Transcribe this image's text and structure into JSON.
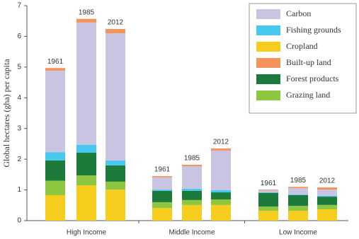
{
  "chart_data": {
    "type": "stacked_bar",
    "y_label": "Global hectares (gha) per capita",
    "groups": [
      "High Income",
      "Middle Income",
      "Low Income"
    ],
    "categories": [
      "1961",
      "1985",
      "2012",
      "1961",
      "1985",
      "2012",
      "1961",
      "1985",
      "2012"
    ],
    "series": [
      {
        "name": "Carbon",
        "color": "#c9c4e2",
        "values": [
          2.65,
          3.98,
          4.14,
          0.4,
          0.73,
          1.29,
          0.07,
          0.21,
          0.2
        ]
      },
      {
        "name": "Fishing grounds",
        "color": "#48c8ee",
        "values": [
          0.27,
          0.26,
          0.16,
          0.04,
          0.07,
          0.07,
          0.02,
          0.02,
          0.03
        ]
      },
      {
        "name": "Cropland",
        "color": "#f6cd1d",
        "values": [
          0.83,
          1.15,
          1.01,
          0.41,
          0.51,
          0.51,
          0.32,
          0.32,
          0.37
        ]
      },
      {
        "name": "Built-up land",
        "color": "#f4935c",
        "values": [
          0.09,
          0.12,
          0.14,
          0.04,
          0.05,
          0.07,
          0.02,
          0.04,
          0.07
        ]
      },
      {
        "name": "Forest products",
        "color": "#1c7b3b",
        "values": [
          0.66,
          0.74,
          0.53,
          0.37,
          0.3,
          0.23,
          0.44,
          0.35,
          0.27
        ]
      },
      {
        "name": "Grazing land",
        "color": "#8dc63f",
        "values": [
          0.47,
          0.32,
          0.26,
          0.19,
          0.16,
          0.18,
          0.14,
          0.16,
          0.14
        ]
      }
    ],
    "ylim": [
      0,
      7
    ],
    "yticks": [
      0,
      1,
      2,
      3,
      4,
      5,
      6,
      7
    ],
    "legend": "upper right"
  }
}
